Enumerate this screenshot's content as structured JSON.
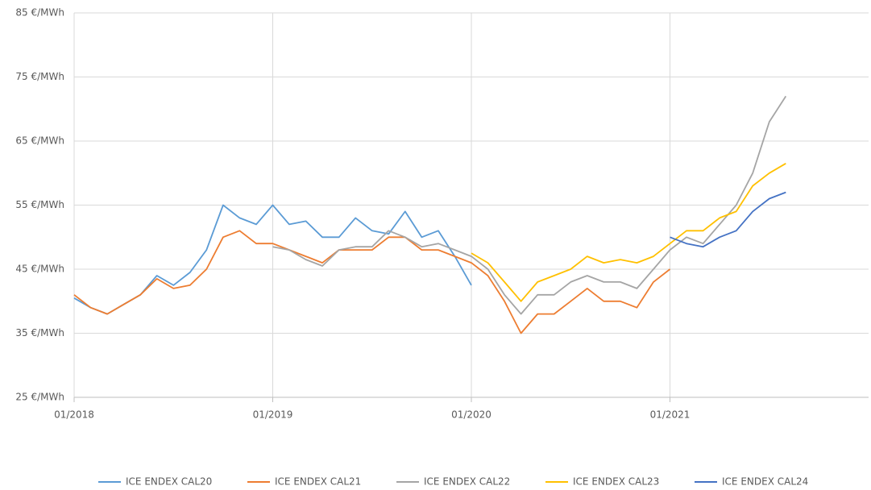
{
  "chart_data": {
    "type": "line",
    "categories": [
      "01/2018",
      null,
      null,
      null,
      null,
      null,
      null,
      null,
      null,
      null,
      null,
      null,
      "01/2019",
      null,
      null,
      null,
      null,
      null,
      null,
      null,
      null,
      null,
      null,
      null,
      "01/2020",
      null,
      null,
      null,
      null,
      null,
      null,
      null,
      null,
      null,
      null,
      null,
      "01/2021",
      null,
      null,
      null,
      null,
      null,
      null,
      null,
      null,
      null,
      null,
      null
    ],
    "ylim": [
      25,
      85
    ],
    "yticks": [
      {
        "value": 25,
        "label": "25 €/MWh"
      },
      {
        "value": 35,
        "label": "35 €/MWh"
      },
      {
        "value": 45,
        "label": "45 €/MWh"
      },
      {
        "value": 55,
        "label": "55 €/MWh"
      },
      {
        "value": 65,
        "label": "65 €/MWh"
      },
      {
        "value": 75,
        "label": "75 €/MWh"
      },
      {
        "value": 85,
        "label": "85 €/MWh"
      }
    ],
    "grid": true,
    "legend": "bottom",
    "series": [
      {
        "name": "ICE ENDEX CAL20",
        "color": "#5b9bd5",
        "values": [
          40.5,
          39,
          38,
          39.5,
          41,
          44,
          42.5,
          44.5,
          48,
          55,
          53,
          52,
          55,
          52,
          52.5,
          50,
          50,
          53,
          51,
          50.5,
          54,
          50,
          51,
          47,
          42.5,
          null,
          null,
          null,
          null,
          null,
          null,
          null,
          null,
          null,
          null,
          null,
          null,
          null,
          null,
          null,
          null,
          null,
          null,
          null,
          null,
          null,
          null,
          null
        ]
      },
      {
        "name": "ICE ENDEX CAL21",
        "color": "#ed7d31",
        "values": [
          41,
          39,
          38,
          39.5,
          41,
          43.5,
          42,
          42.5,
          45,
          50,
          51,
          49,
          49,
          48,
          47,
          46,
          48,
          48,
          48,
          50,
          50,
          48,
          48,
          47,
          46,
          44,
          40,
          35,
          38,
          38,
          40,
          42,
          40,
          40,
          39,
          43,
          45,
          null,
          null,
          null,
          null,
          null,
          null,
          null,
          null,
          null,
          null,
          null
        ]
      },
      {
        "name": "ICE ENDEX CAL22",
        "color": "#a5a5a5",
        "values": [
          null,
          null,
          null,
          null,
          null,
          null,
          null,
          null,
          null,
          null,
          null,
          null,
          48.5,
          48,
          46.5,
          45.5,
          48,
          48.5,
          48.5,
          51,
          50,
          48.5,
          49,
          48,
          47,
          45,
          41,
          38,
          41,
          41,
          43,
          44,
          43,
          43,
          42,
          45,
          48,
          50,
          49,
          52,
          55,
          60,
          68,
          72,
          null,
          null,
          null,
          null
        ]
      },
      {
        "name": "ICE ENDEX CAL23",
        "color": "#ffc000",
        "values": [
          null,
          null,
          null,
          null,
          null,
          null,
          null,
          null,
          null,
          null,
          null,
          null,
          null,
          null,
          null,
          null,
          null,
          null,
          null,
          null,
          null,
          null,
          null,
          null,
          47.5,
          46,
          43,
          40,
          43,
          44,
          45,
          47,
          46,
          46.5,
          46,
          47,
          49,
          51,
          51,
          53,
          54,
          58,
          60,
          61.5,
          null,
          null,
          null,
          null
        ]
      },
      {
        "name": "ICE ENDEX CAL24",
        "color": "#4472c4",
        "values": [
          null,
          null,
          null,
          null,
          null,
          null,
          null,
          null,
          null,
          null,
          null,
          null,
          null,
          null,
          null,
          null,
          null,
          null,
          null,
          null,
          null,
          null,
          null,
          null,
          null,
          null,
          null,
          null,
          null,
          null,
          null,
          null,
          null,
          null,
          null,
          null,
          50,
          49,
          48.5,
          50,
          51,
          54,
          56,
          57,
          null,
          null,
          null,
          null
        ]
      }
    ]
  }
}
